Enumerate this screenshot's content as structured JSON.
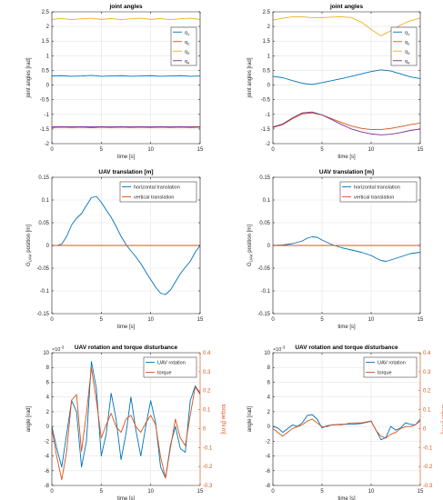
{
  "figure": {
    "colors": {
      "blue": "#0072BD",
      "red": "#D95319",
      "yellow": "#EDB120",
      "purple": "#7E2F8E",
      "axis": "#262626",
      "grid": "#e3e3e3",
      "right_axis": "#D95319"
    }
  },
  "chart_data": [
    {
      "type": "line",
      "title": "joint angles",
      "xlabel": "time [s]",
      "ylabel": "joint angles [rad]",
      "xlim": [
        0,
        15
      ],
      "ylim": [
        -2,
        2.5
      ],
      "xticks": [
        "0",
        "5",
        "10",
        "15"
      ],
      "yticks": [
        "-2",
        "-1.5",
        "-1",
        "-0.5",
        "0",
        "0.5",
        "1",
        "1.5",
        "2",
        "2.5"
      ],
      "grid": true,
      "legend": "top-right",
      "series": [
        {
          "name": "q1",
          "label_main": "q",
          "label_sub": "1",
          "color": "blue",
          "x": [
            0,
            1,
            2,
            3,
            4,
            5,
            6,
            7,
            8,
            9,
            10,
            11,
            12,
            13,
            14,
            15
          ],
          "y": [
            0.31,
            0.32,
            0.3,
            0.31,
            0.33,
            0.3,
            0.31,
            0.32,
            0.3,
            0.31,
            0.32,
            0.3,
            0.31,
            0.32,
            0.3,
            0.31
          ]
        },
        {
          "name": "q2",
          "label_main": "q",
          "label_sub": "2",
          "color": "red",
          "x": [
            0,
            1,
            2,
            3,
            4,
            5,
            6,
            7,
            8,
            9,
            10,
            11,
            12,
            13,
            14,
            15
          ],
          "y": [
            -1.45,
            -1.44,
            -1.45,
            -1.44,
            -1.46,
            -1.44,
            -1.45,
            -1.44,
            -1.45,
            -1.44,
            -1.45,
            -1.44,
            -1.45,
            -1.44,
            -1.45,
            -1.44
          ]
        },
        {
          "name": "q3",
          "label_main": "q",
          "label_sub": "3",
          "color": "yellow",
          "x": [
            0,
            1,
            2,
            3,
            4,
            5,
            6,
            7,
            8,
            9,
            10,
            11,
            12,
            13,
            14,
            15
          ],
          "y": [
            2.24,
            2.27,
            2.23,
            2.26,
            2.28,
            2.24,
            2.27,
            2.23,
            2.26,
            2.28,
            2.24,
            2.27,
            2.23,
            2.26,
            2.28,
            2.24
          ]
        },
        {
          "name": "q4",
          "label_main": "q",
          "label_sub": "4",
          "color": "purple",
          "x": [
            0,
            1,
            2,
            3,
            4,
            5,
            6,
            7,
            8,
            9,
            10,
            11,
            12,
            13,
            14,
            15
          ],
          "y": [
            -1.43,
            -1.42,
            -1.43,
            -1.42,
            -1.43,
            -1.42,
            -1.43,
            -1.42,
            -1.43,
            -1.42,
            -1.43,
            -1.42,
            -1.43,
            -1.42,
            -1.43,
            -1.42
          ]
        }
      ]
    },
    {
      "type": "line",
      "title": "joint angles",
      "xlabel": "time [s]",
      "ylabel": "joint angles [rad]",
      "xlim": [
        0,
        15
      ],
      "ylim": [
        -2,
        2.5
      ],
      "xticks": [
        "0",
        "5",
        "10",
        "15"
      ],
      "yticks": [
        "-2",
        "-1.5",
        "-1",
        "-0.5",
        "0",
        "0.5",
        "1",
        "1.5",
        "2",
        "2.5"
      ],
      "grid": true,
      "legend": "top-right",
      "series": [
        {
          "name": "q1",
          "label_main": "q",
          "label_sub": "1",
          "color": "blue",
          "x": [
            0,
            1,
            2,
            3,
            4,
            5,
            6,
            7,
            8,
            9,
            10,
            11,
            12,
            13,
            14,
            15
          ],
          "y": [
            0.3,
            0.25,
            0.15,
            0.06,
            0.02,
            0.08,
            0.15,
            0.22,
            0.3,
            0.38,
            0.46,
            0.52,
            0.48,
            0.38,
            0.28,
            0.22
          ]
        },
        {
          "name": "q2",
          "label_main": "q",
          "label_sub": "2",
          "color": "red",
          "x": [
            0,
            1,
            2,
            3,
            4,
            5,
            6,
            7,
            8,
            9,
            10,
            11,
            12,
            13,
            14,
            15
          ],
          "y": [
            -1.45,
            -1.35,
            -1.15,
            -0.98,
            -0.95,
            -1.02,
            -1.15,
            -1.28,
            -1.4,
            -1.48,
            -1.52,
            -1.52,
            -1.48,
            -1.42,
            -1.35,
            -1.3
          ]
        },
        {
          "name": "q3",
          "label_main": "q",
          "label_sub": "3",
          "color": "yellow",
          "x": [
            0,
            1,
            2,
            3,
            4,
            5,
            6,
            7,
            8,
            9,
            10,
            11,
            12,
            13,
            14,
            15
          ],
          "y": [
            2.22,
            2.28,
            2.33,
            2.33,
            2.3,
            2.3,
            2.32,
            2.33,
            2.3,
            2.15,
            1.9,
            1.68,
            1.85,
            2.05,
            2.2,
            2.28
          ]
        },
        {
          "name": "q4",
          "label_main": "q",
          "label_sub": "4",
          "color": "purple",
          "x": [
            0,
            1,
            2,
            3,
            4,
            5,
            6,
            7,
            8,
            9,
            10,
            11,
            12,
            13,
            14,
            15
          ],
          "y": [
            -1.43,
            -1.33,
            -1.12,
            -0.95,
            -0.92,
            -1.02,
            -1.18,
            -1.35,
            -1.5,
            -1.6,
            -1.67,
            -1.7,
            -1.68,
            -1.62,
            -1.55,
            -1.5
          ]
        }
      ]
    },
    {
      "type": "line",
      "title": "UAV translation [m]",
      "xlabel": "time [s]",
      "ylabel_main": "G",
      "ylabel_sub": "UAV",
      "ylabel_rest": " position [m]",
      "xlim": [
        0,
        15
      ],
      "ylim": [
        -0.15,
        0.15
      ],
      "xticks": [
        "0",
        "5",
        "10",
        "15"
      ],
      "yticks": [
        "-0.15",
        "-0.1",
        "-0.05",
        "0",
        "0.05",
        "0.1",
        "0.15"
      ],
      "grid": true,
      "legend": "top-right",
      "series": [
        {
          "name": "horizontal translation",
          "color": "blue",
          "x": [
            0,
            0.5,
            1,
            1.5,
            2,
            2.5,
            3,
            3.5,
            4,
            4.5,
            5,
            5.5,
            6,
            6.5,
            7,
            7.5,
            8,
            8.5,
            9,
            9.5,
            10,
            10.5,
            11,
            11.5,
            12,
            12.5,
            13,
            13.5,
            14,
            14.5,
            15
          ],
          "y": [
            0,
            0,
            0.003,
            0.02,
            0.045,
            0.06,
            0.07,
            0.088,
            0.105,
            0.108,
            0.095,
            0.078,
            0.062,
            0.042,
            0.02,
            0.002,
            -0.012,
            -0.025,
            -0.04,
            -0.058,
            -0.075,
            -0.092,
            -0.105,
            -0.108,
            -0.098,
            -0.08,
            -0.062,
            -0.048,
            -0.035,
            -0.015,
            0
          ]
        },
        {
          "name": "vertical translation",
          "color": "red",
          "x": [
            0,
            15
          ],
          "y": [
            0,
            0
          ]
        }
      ]
    },
    {
      "type": "line",
      "title": "UAV translation [m]",
      "xlabel": "time [s]",
      "ylabel_main": "G",
      "ylabel_sub": "UAV",
      "ylabel_rest": " position [m]",
      "xlim": [
        0,
        15
      ],
      "ylim": [
        -0.15,
        0.15
      ],
      "xticks": [
        "0",
        "5",
        "10",
        "15"
      ],
      "yticks": [
        "-0.15",
        "-0.1",
        "-0.05",
        "0",
        "0.05",
        "0.1",
        "0.15"
      ],
      "grid": true,
      "legend": "top-right",
      "series": [
        {
          "name": "horizontal translation",
          "color": "blue",
          "x": [
            0,
            1,
            2,
            3,
            3.5,
            4,
            4.5,
            5,
            6,
            7,
            8,
            9,
            10,
            10.5,
            11,
            11.5,
            12,
            13,
            14,
            15
          ],
          "y": [
            0,
            0.001,
            0.004,
            0.01,
            0.016,
            0.019,
            0.018,
            0.012,
            0.002,
            -0.005,
            -0.01,
            -0.015,
            -0.022,
            -0.028,
            -0.033,
            -0.035,
            -0.032,
            -0.025,
            -0.018,
            -0.015
          ]
        },
        {
          "name": "vertical translation",
          "color": "red",
          "x": [
            0,
            15
          ],
          "y": [
            0,
            0
          ]
        }
      ]
    },
    {
      "type": "line",
      "title": "UAV rotation and torque disturbance",
      "xlabel": "time [s]",
      "ylabel": "angle [rad]",
      "ylabel_right": "torque [N m]",
      "y_exponent": "×10",
      "y_exponent_power": "-3",
      "xlim": [
        0,
        15
      ],
      "ylim": [
        -8,
        10
      ],
      "ylim_right": [
        -0.3,
        0.4
      ],
      "xticks": [
        "0",
        "5",
        "10",
        "15"
      ],
      "yticks": [
        "-8",
        "-6",
        "-4",
        "-2",
        "0",
        "2",
        "4",
        "6",
        "8",
        "10"
      ],
      "yticks_right": [
        "-0.3",
        "-0.2",
        "-0.1",
        "0",
        "0.1",
        "0.2",
        "0.3",
        "0.4"
      ],
      "grid": true,
      "legend": "top-right",
      "series": [
        {
          "name": "UAV rotation",
          "color": "blue",
          "axis": "left",
          "x": [
            0,
            0.5,
            1,
            1.5,
            2,
            2.5,
            3,
            3.5,
            4,
            4.5,
            5,
            5.5,
            6,
            6.5,
            7,
            7.5,
            8,
            8.5,
            9,
            9.5,
            10,
            10.5,
            11,
            11.5,
            12,
            12.5,
            13,
            13.5,
            14,
            14.5,
            15
          ],
          "y": [
            0,
            -3,
            -5.5,
            -1,
            3.5,
            2,
            -5.5,
            -2,
            8.8,
            5.2,
            -4,
            -1,
            4.5,
            1,
            -4.5,
            -1,
            4,
            -0.5,
            -4,
            0,
            3.5,
            0.5,
            -5.5,
            -7,
            -2.5,
            0,
            -3,
            -3.5,
            3.5,
            5.5,
            4.5
          ]
        },
        {
          "name": "torque",
          "color": "red",
          "axis": "right",
          "x": [
            0,
            0.5,
            1,
            1.5,
            2,
            2.5,
            3,
            3.5,
            4,
            4.5,
            5,
            5.5,
            6,
            6.5,
            7,
            7.5,
            8,
            8.5,
            9,
            9.5,
            10,
            10.5,
            11,
            11.5,
            12,
            12.5,
            13,
            13.5,
            14,
            14.5,
            15
          ],
          "y": [
            0,
            -0.15,
            -0.27,
            -0.12,
            0.15,
            0.18,
            -0.12,
            0.08,
            0.32,
            0.15,
            -0.05,
            0.02,
            0.08,
            0.01,
            -0.02,
            0.05,
            0.07,
            0.01,
            -0.02,
            0.03,
            0.07,
            0.02,
            -0.15,
            -0.26,
            -0.1,
            0.05,
            -0.05,
            -0.09,
            0.07,
            0.22,
            0.18
          ]
        }
      ]
    },
    {
      "type": "line",
      "title": "UAV rotation and torque disturbance",
      "xlabel": "time [s]",
      "ylabel": "angle [rad]",
      "ylabel_right": "torque [N m]",
      "y_exponent": "×10",
      "y_exponent_power": "-3",
      "xlim": [
        0,
        15
      ],
      "ylim": [
        -8,
        10
      ],
      "ylim_right": [
        -0.3,
        0.4
      ],
      "xticks": [
        "0",
        "5",
        "10",
        "15"
      ],
      "yticks": [
        "-8",
        "-6",
        "-4",
        "-2",
        "0",
        "2",
        "4",
        "6",
        "8",
        "10"
      ],
      "yticks_right": [
        "-0.3",
        "-0.2",
        "-0.1",
        "0",
        "0.1",
        "0.2",
        "0.3",
        "0.4"
      ],
      "grid": true,
      "legend": "top-right",
      "series": [
        {
          "name": "UAV rotation",
          "color": "blue",
          "axis": "left",
          "x": [
            0,
            0.5,
            1,
            1.5,
            2,
            2.5,
            3,
            3.5,
            4,
            4.5,
            5,
            5.5,
            6,
            7,
            8,
            9,
            10,
            10.5,
            11,
            11.5,
            12,
            12.5,
            13,
            13.5,
            14,
            14.5,
            15
          ],
          "y": [
            0,
            -0.2,
            -0.8,
            -0.3,
            0.2,
            0,
            0.5,
            1.5,
            1.6,
            1.0,
            -0.2,
            0.1,
            0.2,
            0.3,
            0.3,
            0.4,
            0.7,
            -0.5,
            -1.8,
            -1.5,
            0,
            -0.5,
            -0.2,
            0.5,
            0.3,
            0.2,
            1.0
          ]
        },
        {
          "name": "torque",
          "color": "red",
          "axis": "right",
          "x": [
            0,
            0.5,
            1,
            1.5,
            2,
            2.5,
            3,
            3.5,
            4,
            4.5,
            5,
            5.5,
            6,
            7,
            8,
            9,
            10,
            10.5,
            11,
            11.5,
            12,
            12.5,
            13,
            13.5,
            14,
            14.5,
            15
          ],
          "y": [
            0,
            -0.02,
            -0.04,
            -0.02,
            0,
            0.01,
            0.02,
            0.04,
            0.05,
            0.03,
            0.01,
            0.01,
            0.02,
            0.02,
            0.03,
            0.03,
            0.04,
            -0.01,
            -0.04,
            -0.05,
            -0.03,
            -0.02,
            0,
            0.01,
            0.01,
            0.02,
            0.04
          ]
        }
      ]
    }
  ]
}
